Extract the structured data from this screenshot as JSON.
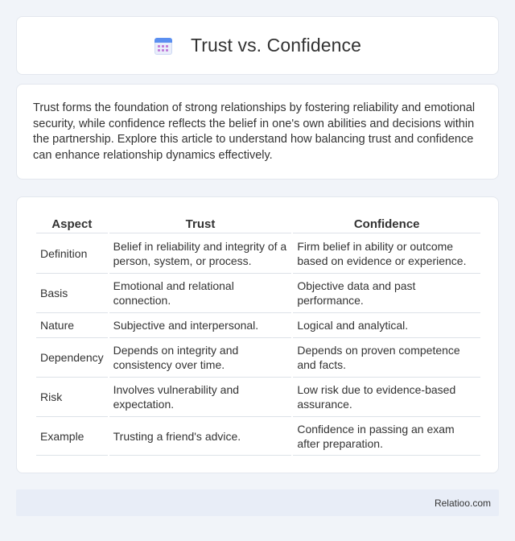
{
  "header": {
    "title": "Trust vs. Confidence",
    "icon": "calendar-icon"
  },
  "intro": {
    "text": "Trust forms the foundation of strong relationships by fostering reliability and emotional security, while confidence reflects the belief in one's own abilities and decisions within the partnership. Explore this article to understand how balancing trust and confidence can enhance relationship dynamics effectively."
  },
  "table": {
    "headers": [
      "Aspect",
      "Trust",
      "Confidence"
    ],
    "rows": [
      [
        "Definition",
        "Belief in reliability and integrity of a person, system, or process.",
        "Firm belief in ability or outcome based on evidence or experience."
      ],
      [
        "Basis",
        "Emotional and relational connection.",
        "Objective data and past performance."
      ],
      [
        "Nature",
        "Subjective and interpersonal.",
        "Logical and analytical."
      ],
      [
        "Dependency",
        "Depends on integrity and consistency over time.",
        "Depends on proven competence and facts."
      ],
      [
        "Risk",
        "Involves vulnerability and expectation.",
        "Low risk due to evidence-based assurance."
      ],
      [
        "Example",
        "Trusting a friend's advice.",
        "Confidence in passing an exam after preparation."
      ]
    ]
  },
  "footer": {
    "brand": "Relatioo.com"
  }
}
